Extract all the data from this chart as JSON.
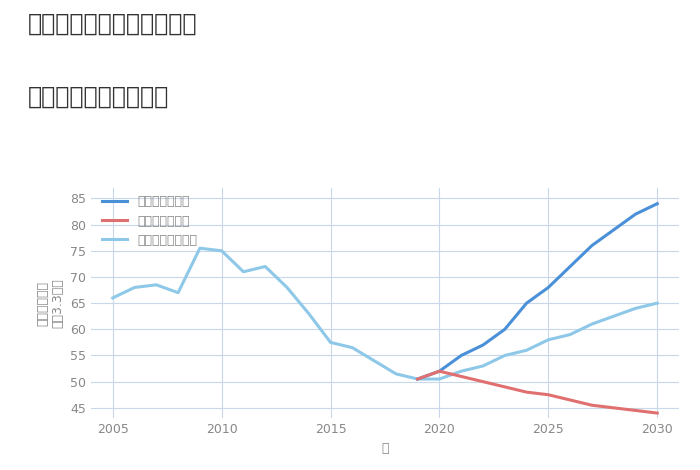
{
  "title_line1": "三重県松阪市飯高町宮前の",
  "title_line2": "中古戸建ての価格推移",
  "xlabel": "年",
  "ylabel": "単価（万円）\n坪（3.3㎡）",
  "ylim": [
    43,
    87
  ],
  "xlim": [
    2004,
    2031
  ],
  "yticks": [
    45,
    50,
    55,
    60,
    65,
    70,
    75,
    80,
    85
  ],
  "xticks": [
    2005,
    2010,
    2015,
    2020,
    2025,
    2030
  ],
  "normal_x": [
    2005,
    2006,
    2007,
    2008,
    2009,
    2010,
    2011,
    2012,
    2013,
    2014,
    2015,
    2016,
    2017,
    2018,
    2019,
    2020,
    2021,
    2022,
    2023,
    2024,
    2025,
    2026,
    2027,
    2028,
    2029,
    2030
  ],
  "normal_y": [
    66,
    68,
    68.5,
    67,
    75.5,
    75,
    71,
    72,
    68,
    63,
    57.5,
    56.5,
    54,
    51.5,
    50.5,
    50.5,
    52,
    53,
    55,
    56,
    58,
    59,
    61,
    62.5,
    64,
    65
  ],
  "good_x": [
    2019,
    2020,
    2021,
    2022,
    2023,
    2024,
    2025,
    2026,
    2027,
    2028,
    2029,
    2030
  ],
  "good_y": [
    50.5,
    52,
    55,
    57,
    60,
    65,
    68,
    72,
    76,
    79,
    82,
    84
  ],
  "bad_x": [
    2019,
    2020,
    2021,
    2022,
    2023,
    2024,
    2025,
    2026,
    2027,
    2028,
    2029,
    2030
  ],
  "bad_y": [
    50.5,
    52,
    51,
    50,
    49,
    48,
    47.5,
    46.5,
    45.5,
    45,
    44.5,
    44
  ],
  "color_normal": "#8EC8E8",
  "color_good": "#4A90D9",
  "color_bad": "#E07070",
  "legend_labels": [
    "グッドシナリオ",
    "バッドシナリオ",
    "ノーマルシナリオ"
  ],
  "background_color": "#FFFFFF",
  "grid_color": "#C8D8E8",
  "title_color": "#333333",
  "axis_color": "#888888",
  "title_fontsize": 17,
  "label_fontsize": 9,
  "legend_fontsize": 9,
  "line_width": 2.2
}
